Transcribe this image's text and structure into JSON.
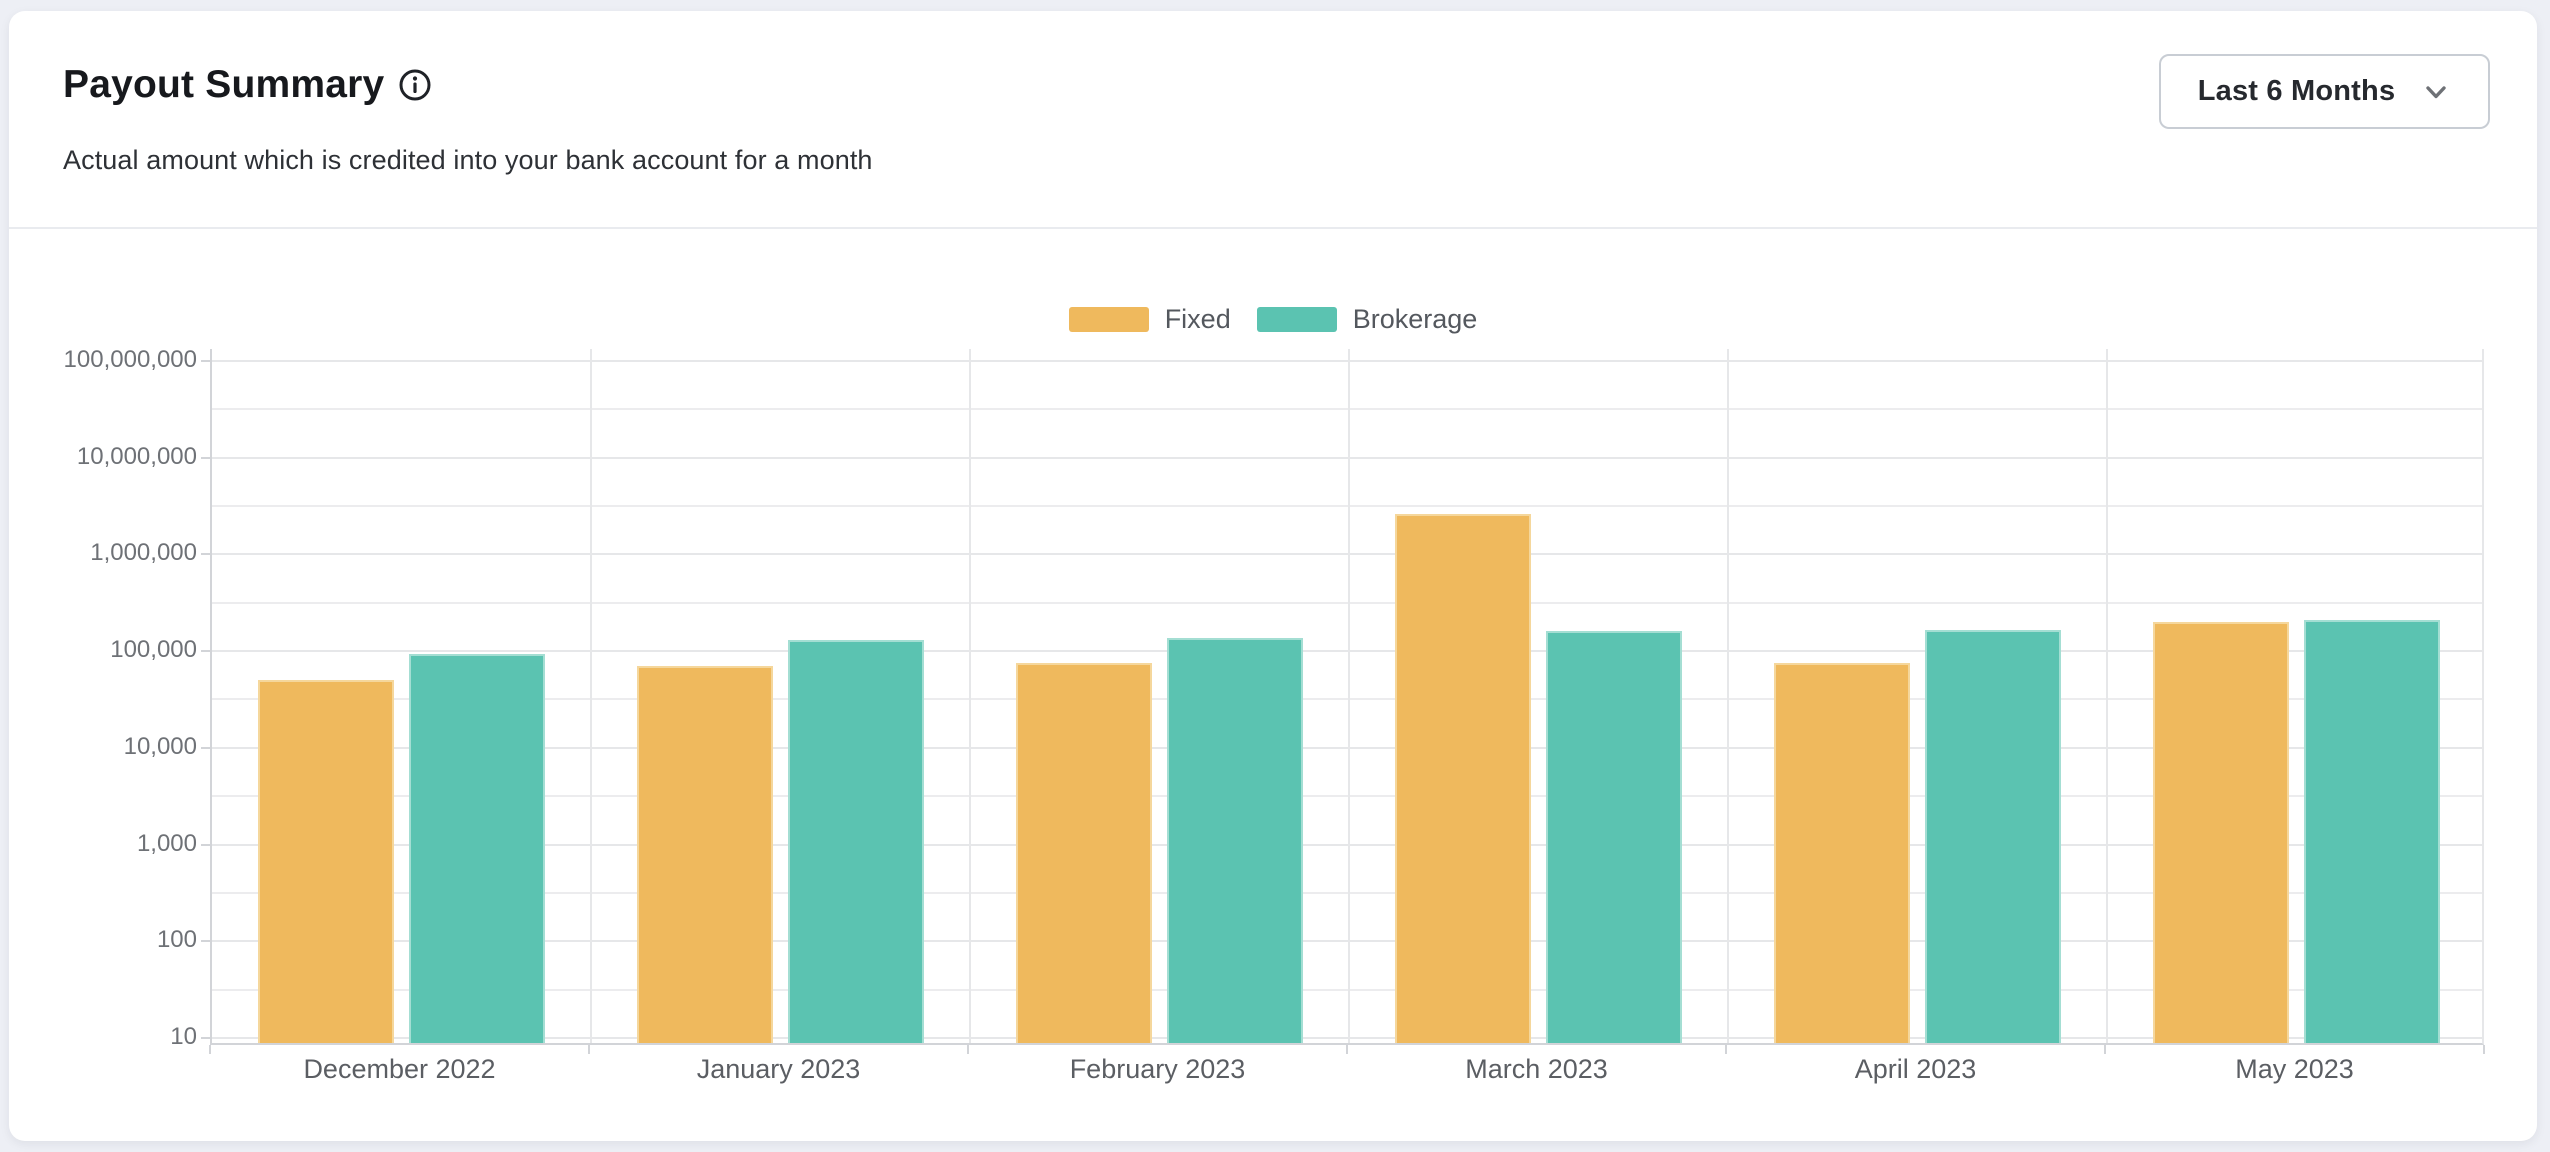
{
  "header": {
    "title": "Payout Summary",
    "subtitle": "Actual amount which is credited into your bank account for a month",
    "range_selector": {
      "value": "Last 6 Months"
    }
  },
  "colors": {
    "fixed": "#efb95d",
    "fixed_border": "#f5d79c",
    "brokerage": "#5bc3b1",
    "brokerage_border": "#a4ded3",
    "gridline": "#e6e7e9",
    "axis": "#d2d4d8",
    "page_background": "#edeff5",
    "card_background": "#ffffff"
  },
  "chart_data": {
    "type": "bar",
    "y_scale": "log",
    "title": "",
    "xlabel": "",
    "ylabel": "",
    "grid": true,
    "legend_position": "top-center",
    "ylim": [
      10,
      100000000
    ],
    "y_ticks": [
      "100,000,000",
      "10,000,000",
      "1,000,000",
      "100,000",
      "10,000",
      "1,000",
      "100",
      "10"
    ],
    "categories": [
      "December 2022",
      "January 2023",
      "February 2023",
      "March 2023",
      "April 2023",
      "May 2023"
    ],
    "series": [
      {
        "name": "Fixed",
        "color": "#efb95d",
        "border": "#f5d79c",
        "values": [
          48000,
          67000,
          71000,
          2500000,
          72000,
          190000
        ]
      },
      {
        "name": "Brokerage",
        "color": "#5bc3b1",
        "border": "#a4ded3",
        "values": [
          90000,
          125000,
          130000,
          155000,
          158000,
          200000
        ]
      }
    ]
  }
}
